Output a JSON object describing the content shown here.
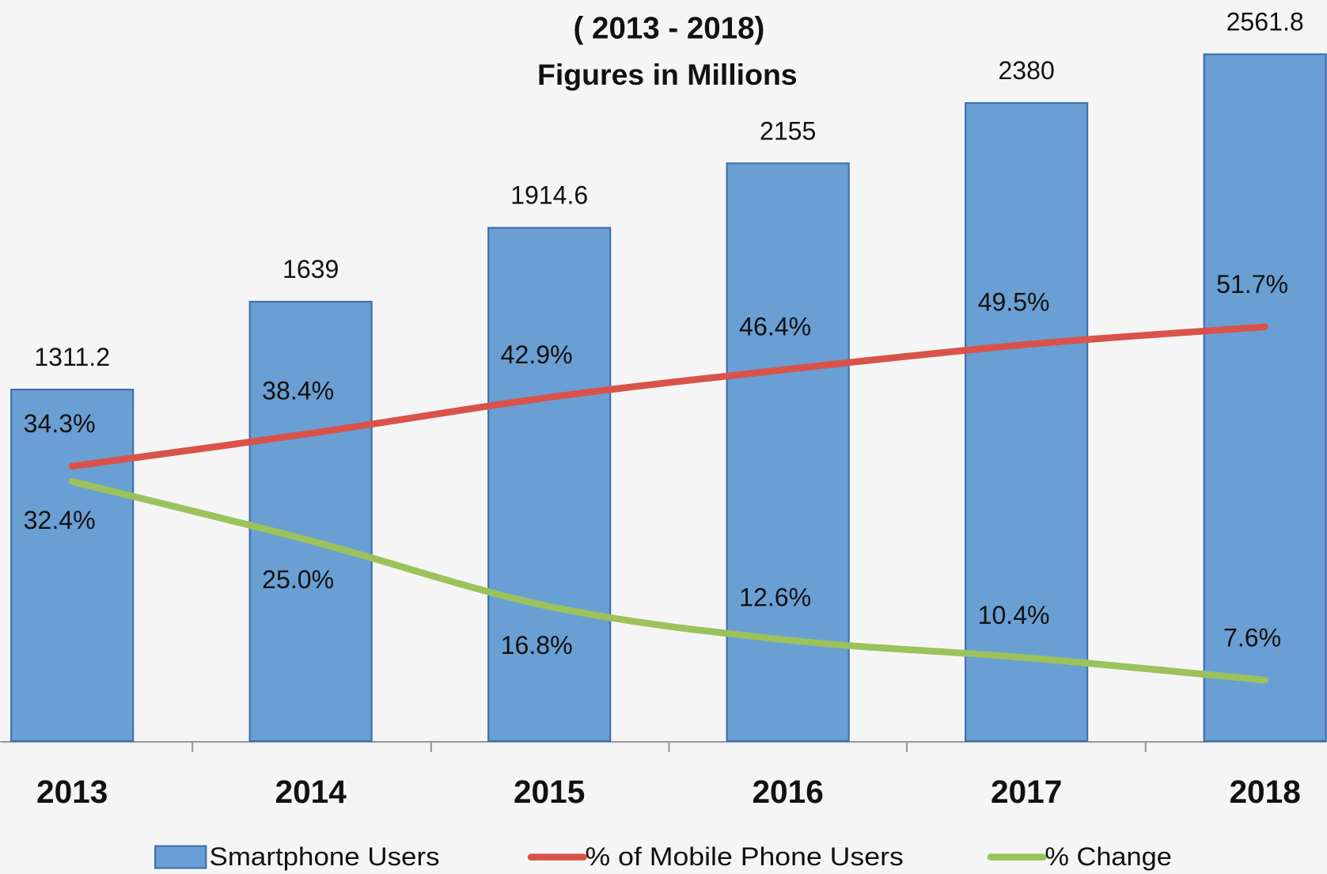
{
  "chart_data": {
    "type": "bar",
    "subtitle": "( 2013 - 2018)",
    "note": "Figures in Millions",
    "categories": [
      "2013",
      "2014",
      "2015",
      "2016",
      "2017",
      "2018"
    ],
    "ylim": [
      0,
      2600
    ],
    "y2lim": [
      0,
      87
    ],
    "series": [
      {
        "name": "Smartphone Users",
        "type": "bar",
        "color": "#6a9fd4",
        "values": [
          1311.2,
          1639,
          1914.6,
          2155,
          2380,
          2561.8
        ]
      },
      {
        "name": "% of Mobile Phone Users",
        "type": "line",
        "axis": "y2",
        "color": "#d9534a",
        "values": [
          34.3,
          38.4,
          42.9,
          46.4,
          49.5,
          51.7
        ],
        "value_labels": [
          "34.3%",
          "38.4%",
          "42.9%",
          "46.4%",
          "49.5%",
          "51.7%"
        ]
      },
      {
        "name": "% Change",
        "type": "line",
        "axis": "y2",
        "color": "#9bc25b",
        "values": [
          32.4,
          25.0,
          16.8,
          12.6,
          10.4,
          7.6
        ],
        "value_labels": [
          "32.4%",
          "25.0%",
          "16.8%",
          "12.6%",
          "10.4%",
          "7.6%"
        ]
      }
    ],
    "legend": "bottom"
  }
}
